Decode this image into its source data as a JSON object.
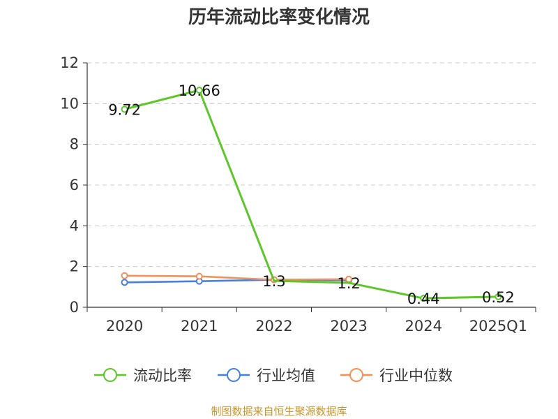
{
  "chart_data": {
    "type": "line",
    "title": "历年流动比率变化情况",
    "categories": [
      "2020",
      "2021",
      "2022",
      "2023",
      "2024",
      "2025Q1"
    ],
    "ylim": [
      0,
      12
    ],
    "yticks": [
      0,
      2,
      4,
      6,
      8,
      10,
      12
    ],
    "grid": true,
    "legend_position": "bottom",
    "series": [
      {
        "name": "流动比率",
        "color": "#5ec52a",
        "values": [
          9.72,
          10.66,
          1.3,
          1.2,
          0.44,
          0.52
        ],
        "labels": [
          "9.72",
          "10.66",
          "1.3",
          "1.2",
          "0.44",
          "0.52"
        ]
      },
      {
        "name": "行业均值",
        "color": "#4a7fdc",
        "values": [
          1.22,
          1.28,
          1.35,
          1.33,
          null,
          null
        ]
      },
      {
        "name": "行业中位数",
        "color": "#f0915c",
        "values": [
          1.55,
          1.52,
          1.35,
          1.38,
          null,
          null
        ]
      }
    ],
    "source": "制图数据来自恒生聚源数据库"
  }
}
